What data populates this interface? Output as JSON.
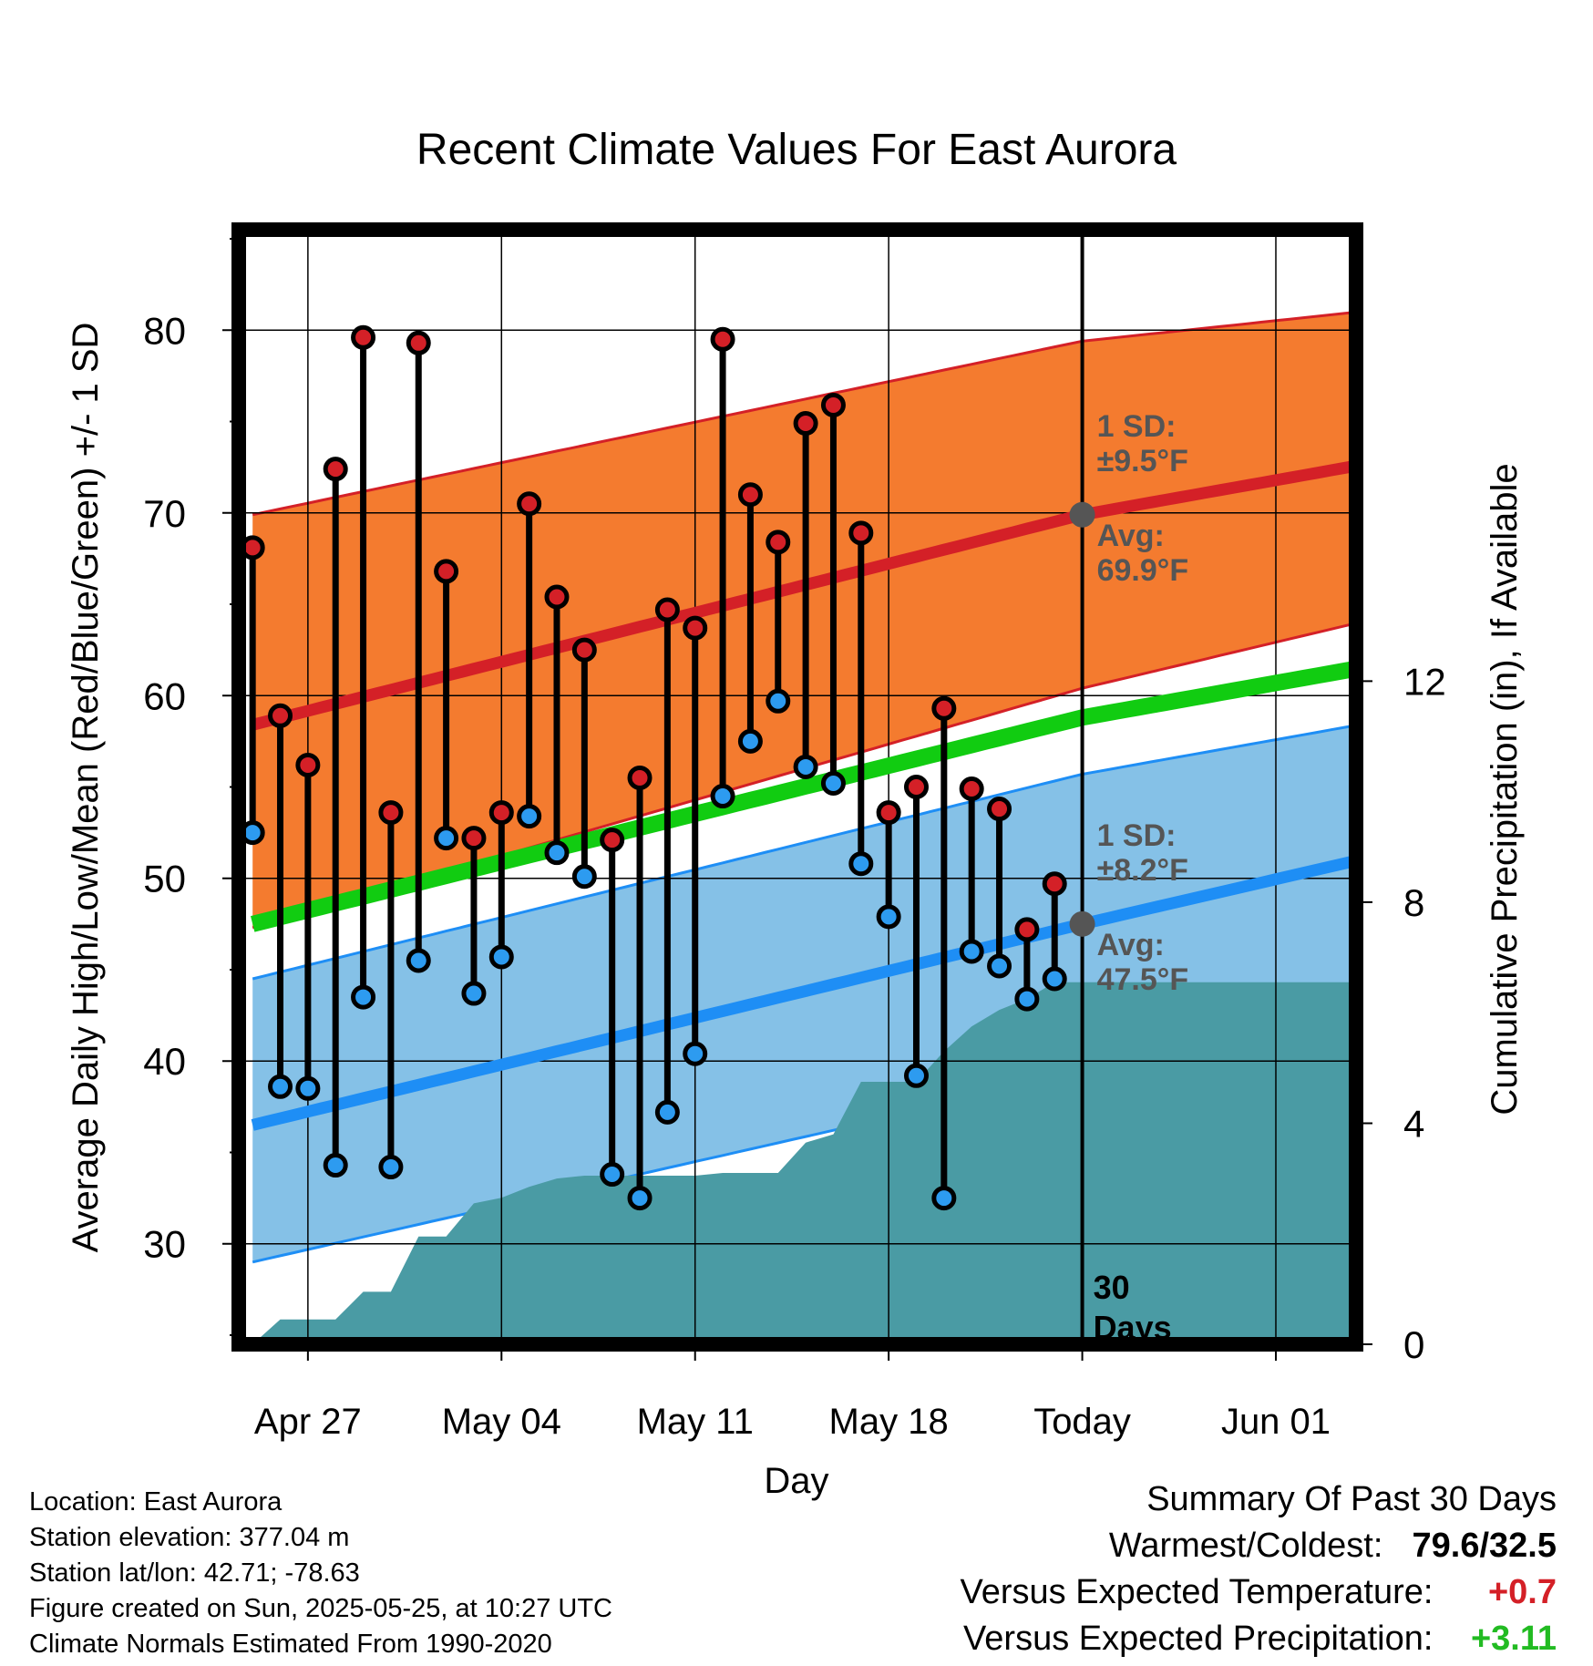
{
  "chart_data": {
    "type": "line",
    "title": "Recent Climate Values For East Aurora",
    "xlabel": "Day",
    "ylabel_left": "Average Daily High/Low/Mean (Red/Blue/Green) +/- 1 SD",
    "ylabel_right": "Cumulative Precipitation (in), If Available",
    "x_tick_labels": [
      "Apr 27",
      "May 04",
      "May 11",
      "May 18",
      "Today",
      "Jun 01"
    ],
    "x_tick_days": [
      2,
      9,
      16,
      23,
      30,
      37
    ],
    "xlim_days": [
      -0.5,
      39.9
    ],
    "ylim_left": [
      24.5,
      85.5
    ],
    "ylim_right": [
      0,
      12
    ],
    "y_ticks_left": [
      30,
      40,
      50,
      60,
      70,
      80
    ],
    "y_ticks_right": [
      0,
      4,
      8,
      12
    ],
    "grid": true,
    "today_day": 30,
    "days_label": "30\nDays",
    "colors": {
      "high_band": "#f47b2f",
      "high_line": "#d42027",
      "low_band": "#85c1e7",
      "low_line": "#1e8ef5",
      "mean_line": "#11cc11",
      "precip": "#4a9ba4",
      "high_dot": "#d42027",
      "low_dot": "#2d9bf0",
      "annotation": "#555555"
    },
    "normal_high": {
      "x": [
        0,
        30,
        40
      ],
      "mean": [
        58.4,
        69.9,
        72.6
      ],
      "upper": [
        69.9,
        79.4,
        81.0
      ],
      "lower": [
        47.3,
        60.4,
        64.0
      ]
    },
    "normal_low": {
      "x": [
        0,
        30,
        40
      ],
      "mean": [
        36.5,
        47.5,
        51.0
      ],
      "upper": [
        44.5,
        55.7,
        58.4
      ],
      "lower": [
        29.0,
        39.3,
        43.2
      ]
    },
    "normal_mean": {
      "x": [
        0,
        30,
        40
      ],
      "values": [
        47.5,
        58.8,
        61.5
      ]
    },
    "daily": {
      "day": [
        0,
        1,
        2,
        3,
        4,
        5,
        6,
        7,
        8,
        9,
        10,
        11,
        12,
        13,
        14,
        15,
        16,
        17,
        18,
        19,
        20,
        21,
        22,
        23,
        24,
        25,
        26,
        27,
        28,
        29
      ],
      "high": [
        68.1,
        58.9,
        56.2,
        72.4,
        79.6,
        53.6,
        79.3,
        66.8,
        52.2,
        53.6,
        70.5,
        65.4,
        62.5,
        52.1,
        55.5,
        64.7,
        63.7,
        79.5,
        71.0,
        68.4,
        74.9,
        75.9,
        68.9,
        53.6,
        55.0,
        59.3,
        54.9,
        53.8,
        47.2,
        49.7
      ],
      "low": [
        52.5,
        38.6,
        38.5,
        34.3,
        43.5,
        34.2,
        45.5,
        52.2,
        43.7,
        45.7,
        53.4,
        51.4,
        50.1,
        33.8,
        32.5,
        37.2,
        40.4,
        54.5,
        57.5,
        59.7,
        56.1,
        55.2,
        50.8,
        47.9,
        39.2,
        32.5,
        46.0,
        45.2,
        43.4,
        44.5
      ]
    },
    "precipitation": {
      "day": [
        0,
        1,
        2,
        3,
        4,
        5,
        6,
        7,
        8,
        9,
        10,
        11,
        12,
        13,
        14,
        15,
        16,
        17,
        18,
        19,
        20,
        21,
        22,
        23,
        24,
        25,
        26,
        27,
        28,
        29,
        30,
        39.9
      ],
      "cumulative": [
        0.0,
        0.45,
        0.45,
        0.45,
        0.95,
        0.95,
        1.95,
        1.95,
        2.55,
        2.65,
        2.85,
        3.0,
        3.05,
        3.05,
        3.05,
        3.05,
        3.05,
        3.1,
        3.1,
        3.1,
        3.65,
        3.8,
        4.75,
        4.75,
        4.75,
        5.3,
        5.75,
        6.05,
        6.25,
        6.55,
        6.55,
        6.55
      ]
    },
    "annotations": {
      "high_sd_label": "1 SD:",
      "high_sd_value": "±9.5°F",
      "high_avg_label": "Avg:",
      "high_avg_value": "69.9°F",
      "low_sd_label": "1 SD:",
      "low_sd_value": "±8.2°F",
      "low_avg_label": "Avg:",
      "low_avg_value": "47.5°F",
      "high_avg_point": 69.9,
      "low_avg_point": 47.5
    }
  },
  "footer_left": {
    "location": "Location: East Aurora",
    "elevation": "Station elevation: 377.04 m",
    "latlon": "Station lat/lon: 42.71; -78.63",
    "created": "Figure created on Sun, 2025-05-25, at 10:27 UTC",
    "normals": "Climate Normals Estimated From 1990-2020"
  },
  "summary": {
    "title": "Summary Of Past 30 Days",
    "warmest_coldest_label": "Warmest/Coldest:",
    "warmest_coldest_value": "79.6/32.5",
    "temp_label": "Versus Expected Temperature:",
    "temp_value": "+0.7",
    "temp_color": "#d42027",
    "precip_label": "Versus Expected Precipitation:",
    "precip_value": "+3.11",
    "precip_color": "#22bb22"
  }
}
